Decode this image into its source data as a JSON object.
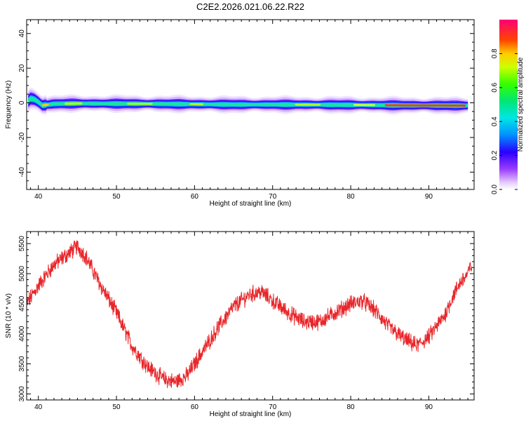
{
  "title": "C2E2.2026.021.06.22.R22",
  "chart_data": [
    {
      "type": "heatmap",
      "xlabel": "Height of straight line (km)",
      "ylabel": "Frequency (Hz)",
      "xlim": [
        38.5,
        95.8
      ],
      "ylim": [
        -50,
        48
      ],
      "xticks": [
        40,
        50,
        60,
        70,
        80,
        90
      ],
      "yticks": [
        -40,
        -20,
        0,
        20,
        40
      ],
      "ridge": {
        "x": [
          38.5,
          39.0,
          39.5,
          40.0,
          40.5,
          41.0,
          42,
          45,
          50,
          55,
          60,
          65,
          70,
          75,
          80,
          85,
          90,
          95
        ],
        "frequency": [
          0,
          2.5,
          2.0,
          0.5,
          -1.5,
          -1.2,
          -0.6,
          -0.4,
          -0.5,
          -0.6,
          -0.8,
          -1.0,
          -1.0,
          -1.1,
          -1.2,
          -1.4,
          -1.5,
          -1.6
        ]
      },
      "colorbar": {
        "label": "Normalized spectral amplitude",
        "range": [
          0,
          1
        ],
        "ticks": [
          "0.0",
          "0.2",
          "0.4",
          "0.6",
          "0.8"
        ]
      }
    },
    {
      "type": "line",
      "xlabel": "Height of straight line (km)",
      "ylabel": "SNR (10 * v/v)",
      "xlim": [
        38.5,
        95.8
      ],
      "ylim": [
        2900,
        5700
      ],
      "xticks": [
        40,
        50,
        60,
        70,
        80,
        90
      ],
      "yticks": [
        3000,
        3500,
        4000,
        4500,
        5000,
        5500
      ],
      "line_color": "#e8262a",
      "series": [
        {
          "name": "SNR",
          "x": [
            38.5,
            40,
            42,
            44,
            45,
            46,
            48,
            50,
            52,
            54,
            56,
            57.5,
            59,
            61,
            63,
            65,
            67,
            68.5,
            70,
            72,
            74,
            76,
            78,
            80,
            81.5,
            83,
            85,
            87,
            88.5,
            90,
            92,
            93,
            94,
            95,
            95.5
          ],
          "values": [
            4500,
            4800,
            5150,
            5350,
            5450,
            5300,
            4800,
            4350,
            3800,
            3450,
            3250,
            3200,
            3300,
            3700,
            4100,
            4450,
            4650,
            4700,
            4550,
            4350,
            4200,
            4200,
            4350,
            4500,
            4550,
            4400,
            4100,
            3900,
            3800,
            3950,
            4300,
            4600,
            4850,
            5000,
            5150
          ]
        }
      ]
    }
  ]
}
